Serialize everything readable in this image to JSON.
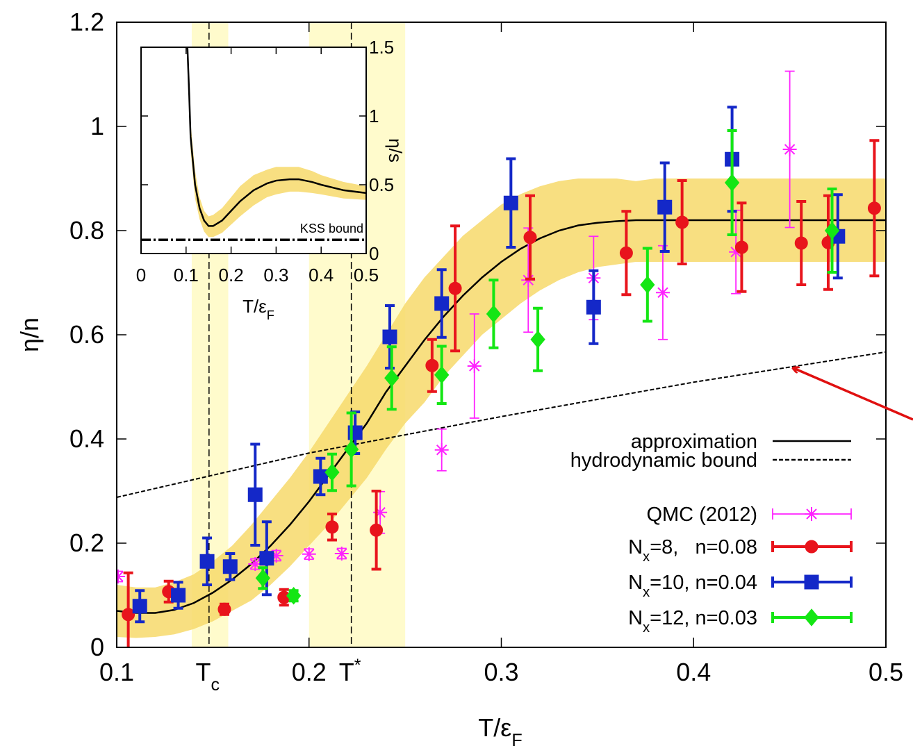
{
  "chart_data": {
    "type": "errorbar",
    "x_label": [
      "T/ε",
      "F"
    ],
    "y_label": "η/n",
    "xlim": [
      0.1,
      0.5
    ],
    "ylim": [
      0,
      1.2
    ],
    "xticks": [
      0.1,
      0.2,
      0.3,
      0.4,
      0.5
    ],
    "yticks": [
      0,
      0.2,
      0.4,
      0.6,
      0.8,
      1,
      1.2
    ],
    "legend": "lower right",
    "annotations": [
      {
        "x": 0.148,
        "label": [
          "T",
          "c"
        ],
        "range": [
          0.139,
          0.158
        ],
        "color": "#fffbcc"
      },
      {
        "x": 0.222,
        "label": [
          "T",
          "*"
        ],
        "range": [
          0.2,
          0.25
        ],
        "color": "#fffbcc"
      }
    ],
    "band": {
      "color": "#f7d96b",
      "x": [
        0.1,
        0.11,
        0.12,
        0.13,
        0.14,
        0.15,
        0.16,
        0.17,
        0.18,
        0.19,
        0.2,
        0.21,
        0.22,
        0.23,
        0.24,
        0.25,
        0.26,
        0.27,
        0.28,
        0.29,
        0.3,
        0.31,
        0.32,
        0.33,
        0.34,
        0.35,
        0.36,
        0.37,
        0.38,
        0.5
      ],
      "upper": [
        0.12,
        0.115,
        0.115,
        0.125,
        0.14,
        0.165,
        0.195,
        0.235,
        0.28,
        0.325,
        0.375,
        0.43,
        0.485,
        0.54,
        0.6,
        0.66,
        0.71,
        0.75,
        0.79,
        0.82,
        0.85,
        0.87,
        0.885,
        0.895,
        0.9,
        0.9,
        0.9,
        0.895,
        0.9,
        0.9
      ],
      "lower": [
        0.02,
        0.018,
        0.02,
        0.025,
        0.035,
        0.05,
        0.07,
        0.09,
        0.12,
        0.155,
        0.195,
        0.235,
        0.28,
        0.325,
        0.38,
        0.43,
        0.47,
        0.52,
        0.56,
        0.6,
        0.63,
        0.66,
        0.685,
        0.705,
        0.72,
        0.73,
        0.735,
        0.74,
        0.74,
        0.74
      ]
    },
    "series": [
      {
        "name": "approximation",
        "color": "#000000",
        "style": "solid",
        "x": [
          0.1,
          0.11,
          0.12,
          0.13,
          0.14,
          0.15,
          0.16,
          0.17,
          0.18,
          0.19,
          0.2,
          0.21,
          0.22,
          0.23,
          0.24,
          0.25,
          0.26,
          0.27,
          0.28,
          0.29,
          0.3,
          0.31,
          0.32,
          0.33,
          0.34,
          0.35,
          0.36,
          0.37,
          0.38,
          0.5
        ],
        "values": [
          0.07,
          0.066,
          0.066,
          0.072,
          0.085,
          0.105,
          0.13,
          0.16,
          0.195,
          0.235,
          0.28,
          0.33,
          0.38,
          0.43,
          0.49,
          0.54,
          0.59,
          0.635,
          0.675,
          0.71,
          0.74,
          0.765,
          0.785,
          0.8,
          0.81,
          0.815,
          0.818,
          0.82,
          0.82,
          0.82
        ]
      },
      {
        "name": "hydrodynamic bound",
        "color": "#000000",
        "style": "dashed",
        "x": [
          0.1,
          0.2,
          0.3,
          0.4,
          0.5
        ],
        "values": [
          0.288,
          0.373,
          0.443,
          0.509,
          0.567
        ]
      },
      {
        "name": "QMC (2012)",
        "color": "#ff22ff",
        "marker": "asterisk",
        "x": [
          0.1007,
          0.172,
          0.183,
          0.2,
          0.217,
          0.237,
          0.269,
          0.286,
          0.314,
          0.348,
          0.384,
          0.422,
          0.45
        ],
        "values": [
          0.136,
          0.16,
          0.176,
          0.179,
          0.18,
          0.259,
          0.379,
          0.54,
          0.705,
          0.709,
          0.681,
          0.759,
          0.956
        ],
        "errors": [
          0.01,
          0.01,
          0.01,
          0.01,
          0.01,
          0.04,
          0.04,
          0.1,
          0.1,
          0.08,
          0.09,
          0.08,
          0.15
        ]
      },
      {
        "name": [
          "N",
          "x",
          "=8,   n=0.08"
        ],
        "color": "#e8141c",
        "marker": "circle",
        "x": [
          0.106,
          0.127,
          0.156,
          0.187,
          0.212,
          0.235,
          0.264,
          0.276,
          0.315,
          0.365,
          0.394,
          0.425,
          0.456,
          0.47,
          0.494
        ],
        "values": [
          0.063,
          0.107,
          0.073,
          0.096,
          0.231,
          0.225,
          0.541,
          0.689,
          0.787,
          0.757,
          0.816,
          0.768,
          0.776,
          0.777,
          0.843
        ],
        "errors": [
          0.08,
          0.02,
          0.01,
          0.015,
          0.025,
          0.075,
          0.05,
          0.12,
          0.08,
          0.08,
          0.08,
          0.085,
          0.08,
          0.09,
          0.13
        ]
      },
      {
        "name": [
          "N",
          "x",
          "=10, n=0.04"
        ],
        "color": "#1428c8",
        "marker": "square",
        "x": [
          0.112,
          0.132,
          0.147,
          0.159,
          0.172,
          0.178,
          0.206,
          0.224,
          0.242,
          0.269,
          0.305,
          0.348,
          0.385,
          0.42,
          0.475
        ],
        "values": [
          0.079,
          0.1,
          0.165,
          0.155,
          0.293,
          0.171,
          0.328,
          0.412,
          0.596,
          0.66,
          0.853,
          0.653,
          0.845,
          0.937,
          0.789
        ],
        "errors": [
          0.03,
          0.025,
          0.045,
          0.025,
          0.097,
          0.07,
          0.035,
          0.04,
          0.06,
          0.065,
          0.085,
          0.07,
          0.085,
          0.1,
          0.08
        ]
      },
      {
        "name": [
          "N",
          "x",
          "=12, n=0.03"
        ],
        "color": "#14e614",
        "marker": "diamond",
        "x": [
          0.176,
          0.192,
          0.212,
          0.222,
          0.243,
          0.269,
          0.296,
          0.319,
          0.376,
          0.42,
          0.472
        ],
        "values": [
          0.133,
          0.099,
          0.336,
          0.38,
          0.517,
          0.523,
          0.64,
          0.591,
          0.696,
          0.892,
          0.8
        ],
        "errors": [
          0.02,
          0.01,
          0.035,
          0.07,
          0.06,
          0.055,
          0.065,
          0.06,
          0.07,
          0.1,
          0.08
        ]
      }
    ],
    "inset": {
      "x_label": [
        "T/ε",
        "F"
      ],
      "y_label": "η/s",
      "xlim": [
        0,
        0.5
      ],
      "ylim": [
        0,
        1.5
      ],
      "xticks": [
        0,
        0.1,
        0.2,
        0.3,
        0.4,
        0.5
      ],
      "yticks": [
        0,
        0.5,
        1,
        1.5
      ],
      "color": "#000000",
      "band_color": "#f7d96b",
      "x": [
        0.103,
        0.107,
        0.11,
        0.12,
        0.13,
        0.14,
        0.15,
        0.16,
        0.18,
        0.2,
        0.22,
        0.25,
        0.28,
        0.3,
        0.33,
        0.35,
        0.38,
        0.4,
        0.45,
        0.5
      ],
      "values": [
        1.5,
        1.15,
        0.85,
        0.5,
        0.33,
        0.24,
        0.2,
        0.2,
        0.24,
        0.31,
        0.38,
        0.46,
        0.51,
        0.53,
        0.54,
        0.54,
        0.52,
        0.5,
        0.46,
        0.44
      ],
      "upper": [
        1.6,
        1.25,
        0.95,
        0.6,
        0.41,
        0.31,
        0.27,
        0.28,
        0.33,
        0.41,
        0.49,
        0.57,
        0.61,
        0.63,
        0.63,
        0.63,
        0.6,
        0.57,
        0.52,
        0.49
      ],
      "lower": [
        1.4,
        1.05,
        0.75,
        0.4,
        0.25,
        0.16,
        0.12,
        0.12,
        0.15,
        0.21,
        0.27,
        0.35,
        0.41,
        0.43,
        0.45,
        0.45,
        0.44,
        0.43,
        0.4,
        0.39
      ],
      "kss": {
        "value": 0.1,
        "label": "KSS bound"
      }
    }
  }
}
